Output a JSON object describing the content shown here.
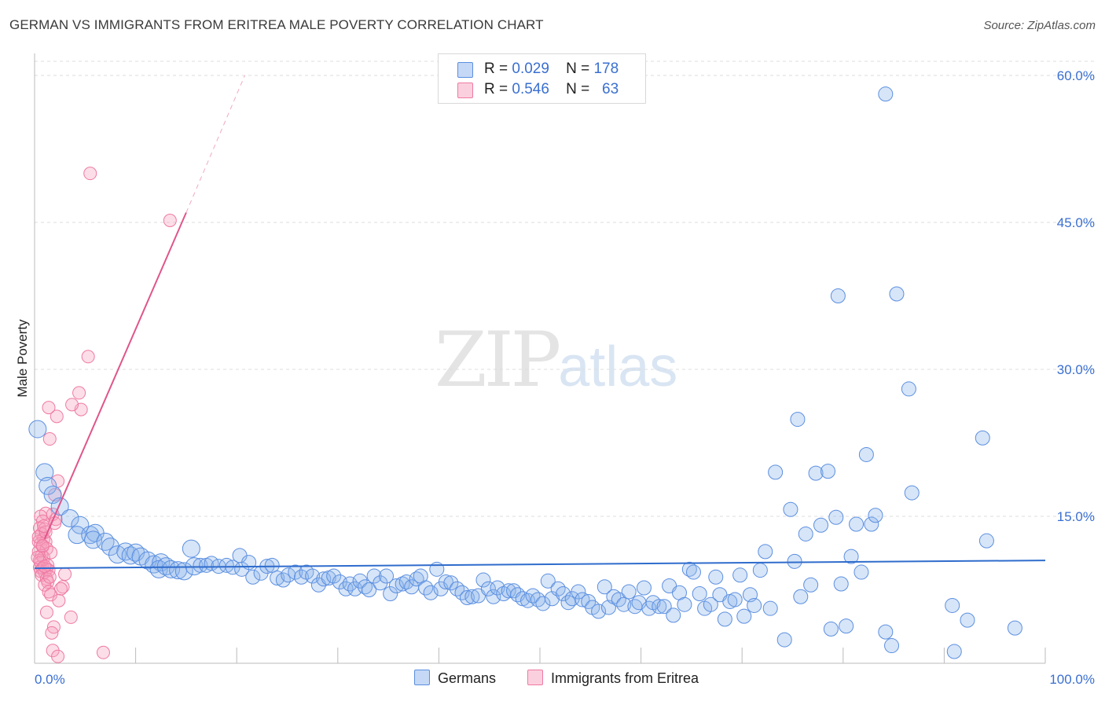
{
  "title": "GERMAN VS IMMIGRANTS FROM ERITREA MALE POVERTY CORRELATION CHART",
  "source": "Source: ZipAtlas.com",
  "watermark": {
    "zip": "ZIP",
    "atlas": "atlas"
  },
  "colors": {
    "german": "#5b8fe0",
    "eritrea": "#ee7aa3",
    "german_line": "#2f6ccc",
    "eritrea_line": "#e0558a",
    "grid": "#dddddd",
    "tick_label": "#3a6fd0"
  },
  "legend": {
    "rows": [
      {
        "r_label": "R =",
        "r_value": "0.029",
        "n_label": "N =",
        "n_value": "178"
      },
      {
        "r_label": "R =",
        "r_value": "0.546",
        "n_label": "N =",
        "n_value": "63"
      }
    ]
  },
  "bottom_legend": {
    "german": "Germans",
    "eritrea": "Immigrants from Eritrea"
  },
  "chart_data": {
    "type": "scatter",
    "title": "GERMAN VS IMMIGRANTS FROM ERITREA MALE POVERTY CORRELATION CHART",
    "xlabel": "",
    "ylabel": "Male Poverty",
    "xlim": [
      0,
      100
    ],
    "ylim": [
      0,
      62
    ],
    "x_tick_labels": [
      "0.0%",
      "100.0%"
    ],
    "y_ticks": [
      15,
      30,
      45,
      60
    ],
    "y_tick_labels": [
      "15.0%",
      "30.0%",
      "45.0%",
      "60.0%"
    ],
    "grid": "horizontal dashed",
    "legend_placement": "top-center",
    "series": [
      {
        "name": "Germans",
        "r": 0.029,
        "n": 178,
        "trend": {
          "x0": 0,
          "y0": 9.7,
          "x1": 100,
          "y1": 10.5
        },
        "points": [
          [
            0.3,
            23.9
          ],
          [
            1,
            19.5
          ],
          [
            1.3,
            18.1
          ],
          [
            1.8,
            17.2
          ],
          [
            2.5,
            16
          ],
          [
            3.5,
            14.8
          ],
          [
            4.5,
            14.1
          ],
          [
            4.2,
            13.1
          ],
          [
            5.5,
            13.1
          ],
          [
            6,
            13.3
          ],
          [
            5.8,
            12.6
          ],
          [
            7,
            12.4
          ],
          [
            7.5,
            11.9
          ],
          [
            8.2,
            11.1
          ],
          [
            9,
            11.4
          ],
          [
            9.5,
            11
          ],
          [
            10,
            11.3
          ],
          [
            10.5,
            10.9
          ],
          [
            11.2,
            10.5
          ],
          [
            11.8,
            10.1
          ],
          [
            12.5,
            10.3
          ],
          [
            12.3,
            9.6
          ],
          [
            13,
            9.9
          ],
          [
            13.5,
            9.6
          ],
          [
            14.2,
            9.5
          ],
          [
            15.5,
            11.7
          ],
          [
            14.8,
            9.4
          ],
          [
            15.8,
            9.9
          ],
          [
            16.4,
            10
          ],
          [
            17,
            10
          ],
          [
            17.5,
            10.2
          ],
          [
            18.2,
            9.9
          ],
          [
            19,
            10
          ],
          [
            19.6,
            9.8
          ],
          [
            20.3,
            11
          ],
          [
            20.5,
            9.6
          ],
          [
            21.2,
            10.3
          ],
          [
            21.6,
            8.8
          ],
          [
            22.4,
            9.2
          ],
          [
            23,
            9.9
          ],
          [
            23.5,
            10
          ],
          [
            24,
            8.7
          ],
          [
            24.6,
            8.5
          ],
          [
            25.1,
            9
          ],
          [
            25.8,
            9.3
          ],
          [
            26.4,
            8.8
          ],
          [
            26.9,
            9.3
          ],
          [
            27.5,
            8.9
          ],
          [
            28.1,
            8
          ],
          [
            28.6,
            8.6
          ],
          [
            29.1,
            8.7
          ],
          [
            29.6,
            8.9
          ],
          [
            30.2,
            8.3
          ],
          [
            30.8,
            7.6
          ],
          [
            31.2,
            8.1
          ],
          [
            31.7,
            7.6
          ],
          [
            32.2,
            8.4
          ],
          [
            32.7,
            7.8
          ],
          [
            33.1,
            7.5
          ],
          [
            33.6,
            8.9
          ],
          [
            34.2,
            8.2
          ],
          [
            34.8,
            8.9
          ],
          [
            35.2,
            7.1
          ],
          [
            35.8,
            7.9
          ],
          [
            36.4,
            8.1
          ],
          [
            36.8,
            8.3
          ],
          [
            37.3,
            7.8
          ],
          [
            37.8,
            8.6
          ],
          [
            38.2,
            8.9
          ],
          [
            38.7,
            7.7
          ],
          [
            39.2,
            7.2
          ],
          [
            39.8,
            9.6
          ],
          [
            40.2,
            7.6
          ],
          [
            40.7,
            8.3
          ],
          [
            41.2,
            8.2
          ],
          [
            41.8,
            7.6
          ],
          [
            42.3,
            7.2
          ],
          [
            42.8,
            6.7
          ],
          [
            43.3,
            6.8
          ],
          [
            43.9,
            6.9
          ],
          [
            44.4,
            8.5
          ],
          [
            44.9,
            7.6
          ],
          [
            45.4,
            6.8
          ],
          [
            45.8,
            7.7
          ],
          [
            46.4,
            7.1
          ],
          [
            46.9,
            7.4
          ],
          [
            47.4,
            7.4
          ],
          [
            47.8,
            7
          ],
          [
            48.3,
            6.6
          ],
          [
            48.8,
            6.4
          ],
          [
            49.3,
            6.9
          ],
          [
            49.8,
            6.5
          ],
          [
            50.3,
            6.1
          ],
          [
            50.8,
            8.4
          ],
          [
            51.2,
            6.6
          ],
          [
            51.8,
            7.6
          ],
          [
            52.3,
            7.1
          ],
          [
            52.8,
            6.2
          ],
          [
            53.2,
            6.6
          ],
          [
            53.8,
            7.3
          ],
          [
            54.2,
            6.5
          ],
          [
            54.8,
            6.3
          ],
          [
            55.2,
            5.7
          ],
          [
            55.8,
            5.3
          ],
          [
            56.4,
            7.8
          ],
          [
            56.8,
            5.7
          ],
          [
            57.3,
            6.8
          ],
          [
            57.8,
            6.5
          ],
          [
            58.3,
            6
          ],
          [
            58.8,
            7.3
          ],
          [
            59.4,
            5.8
          ],
          [
            59.8,
            6.2
          ],
          [
            60.3,
            7.7
          ],
          [
            60.8,
            5.6
          ],
          [
            61.2,
            6.2
          ],
          [
            61.8,
            5.8
          ],
          [
            62.3,
            5.8
          ],
          [
            62.8,
            7.9
          ],
          [
            63.2,
            4.9
          ],
          [
            63.8,
            7.2
          ],
          [
            64.3,
            6
          ],
          [
            64.8,
            9.6
          ],
          [
            65.2,
            9.3
          ],
          [
            65.8,
            7.1
          ],
          [
            66.3,
            5.6
          ],
          [
            66.9,
            6
          ],
          [
            67.4,
            8.8
          ],
          [
            67.8,
            7
          ],
          [
            68.3,
            4.5
          ],
          [
            68.8,
            6.3
          ],
          [
            69.3,
            6.5
          ],
          [
            69.8,
            9
          ],
          [
            70.2,
            4.8
          ],
          [
            70.8,
            7
          ],
          [
            71.2,
            5.9
          ],
          [
            71.8,
            9.5
          ],
          [
            72.3,
            11.4
          ],
          [
            72.8,
            5.6
          ],
          [
            73.3,
            19.5
          ],
          [
            74.2,
            2.4
          ],
          [
            75.2,
            10.4
          ],
          [
            74.8,
            15.7
          ],
          [
            75.8,
            6.8
          ],
          [
            76.3,
            13.2
          ],
          [
            76.8,
            8
          ],
          [
            77.3,
            19.4
          ],
          [
            77.8,
            14.1
          ],
          [
            78.8,
            3.5
          ],
          [
            79.3,
            14.9
          ],
          [
            79.8,
            8.1
          ],
          [
            80.3,
            3.8
          ],
          [
            80.8,
            10.9
          ],
          [
            81.3,
            14.2
          ],
          [
            81.8,
            9.3
          ],
          [
            82.3,
            21.3
          ],
          [
            82.8,
            14.2
          ],
          [
            83.2,
            15.1
          ],
          [
            84.2,
            3.2
          ],
          [
            84.8,
            1.8
          ],
          [
            86.8,
            17.4
          ],
          [
            79.5,
            37.5
          ],
          [
            85.3,
            37.7
          ],
          [
            84.2,
            58.1
          ],
          [
            86.5,
            28
          ],
          [
            75.5,
            24.9
          ],
          [
            78.5,
            19.6
          ],
          [
            93.8,
            23
          ],
          [
            94.2,
            12.5
          ],
          [
            90.8,
            5.9
          ],
          [
            92.3,
            4.4
          ],
          [
            97,
            3.6
          ],
          [
            91,
            1.2
          ]
        ]
      },
      {
        "name": "Immigrants from Eritrea",
        "r": 0.546,
        "n": 63,
        "trend": {
          "x0": 1.0,
          "y0": 12.7,
          "x1": 15.0,
          "y1": 46.0
        },
        "trend_dashed_to": {
          "x": 20.8,
          "y": 60.0
        },
        "points": [
          [
            5.5,
            50
          ],
          [
            13.4,
            45.2
          ],
          [
            5.3,
            31.3
          ],
          [
            4.4,
            27.6
          ],
          [
            4.6,
            25.9
          ],
          [
            3.7,
            26.4
          ],
          [
            1.4,
            26.1
          ],
          [
            2.2,
            25.2
          ],
          [
            1.5,
            22.9
          ],
          [
            2.3,
            18.6
          ],
          [
            2.0,
            17.2
          ],
          [
            1.8,
            15.2
          ],
          [
            2.1,
            14.7
          ],
          [
            2.0,
            14.3
          ],
          [
            1.1,
            15.3
          ],
          [
            0.6,
            15.0
          ],
          [
            0.8,
            14.5
          ],
          [
            0.5,
            13.8
          ],
          [
            1.0,
            13.7
          ],
          [
            0.7,
            13.2
          ],
          [
            0.9,
            12.7
          ],
          [
            0.4,
            12.4
          ],
          [
            1.1,
            12.4
          ],
          [
            0.6,
            12.2
          ],
          [
            0.8,
            11.9
          ],
          [
            1.2,
            11.7
          ],
          [
            0.4,
            11.4
          ],
          [
            0.7,
            11.0
          ],
          [
            0.9,
            10.8
          ],
          [
            0.5,
            10.5
          ],
          [
            0.6,
            10.3
          ],
          [
            1.3,
            10.0
          ],
          [
            0.5,
            9.8
          ],
          [
            0.8,
            9.7
          ],
          [
            1.2,
            9.6
          ],
          [
            0.6,
            9.4
          ],
          [
            1.0,
            9.3
          ],
          [
            1.4,
            9.5
          ],
          [
            0.7,
            9.0
          ],
          [
            3.0,
            9.1
          ],
          [
            1.2,
            8.6
          ],
          [
            1.3,
            8.3
          ],
          [
            1.0,
            8.0
          ],
          [
            2.8,
            7.8
          ],
          [
            2.6,
            7.6
          ],
          [
            1.4,
            7.3
          ],
          [
            1.6,
            7.0
          ],
          [
            2.4,
            6.4
          ],
          [
            1.2,
            5.2
          ],
          [
            3.6,
            4.7
          ],
          [
            1.9,
            3.7
          ],
          [
            1.7,
            3.1
          ],
          [
            1.8,
            1.3
          ],
          [
            6.8,
            1.1
          ],
          [
            2.3,
            0.7
          ],
          [
            0.4,
            12.9
          ],
          [
            1.1,
            13.4
          ],
          [
            0.9,
            14.0
          ],
          [
            1.6,
            11.3
          ],
          [
            0.3,
            10.8
          ],
          [
            1.0,
            9.9
          ],
          [
            1.5,
            8.8
          ],
          [
            0.8,
            12.0
          ]
        ]
      }
    ]
  }
}
